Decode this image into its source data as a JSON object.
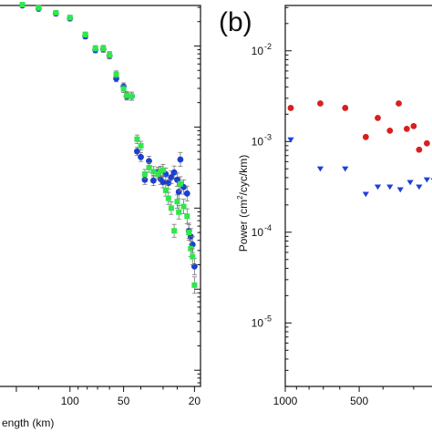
{
  "chart_data": [
    {
      "type": "scatter",
      "panel_label": "",
      "xscale": "log-reversed",
      "xlim": [
        250,
        18.5
      ],
      "ylim_log10": [
        -6.2,
        -1.5
      ],
      "x_ticks": [
        100,
        50,
        20
      ],
      "x_tick_labels": [
        "100",
        "50",
        "20"
      ],
      "xlabel": "ength (km)",
      "ylabel": "",
      "error_bars": true,
      "series": [
        {
          "color": "#1a3fd0",
          "marker": "circle",
          "x": [
            185,
            150,
            120,
            100,
            82,
            72,
            65,
            60,
            55,
            50,
            48,
            45,
            42,
            40,
            38,
            36,
            34,
            32,
            31,
            30,
            29,
            28,
            27,
            26,
            25,
            24.5,
            24,
            23,
            22,
            21.5,
            21,
            20.5,
            20
          ],
          "y": [
            -1.5,
            -1.54,
            -1.6,
            -1.66,
            -1.88,
            -2.05,
            -2.04,
            -2.12,
            -2.4,
            -2.5,
            -2.62,
            -2.62,
            -3.3,
            -3.37,
            -3.65,
            -3.42,
            -3.66,
            -3.56,
            -3.64,
            -3.68,
            -3.58,
            -3.69,
            -3.62,
            -3.56,
            -3.65,
            -3.8,
            -3.4,
            -3.74,
            -3.82,
            -4.28,
            -4.35,
            -4.45,
            -4.72
          ]
        },
        {
          "color": "#2ee84a",
          "marker": "square",
          "x": [
            185,
            150,
            120,
            100,
            82,
            72,
            65,
            60,
            55,
            50,
            48,
            45,
            42,
            40,
            38,
            36,
            34,
            32,
            31,
            30,
            29,
            28,
            27,
            26,
            25,
            24.5,
            24,
            23,
            22,
            21.5,
            21,
            20.5,
            20
          ],
          "y": [
            -1.49,
            -1.53,
            -1.59,
            -1.65,
            -1.86,
            -2.03,
            -2.03,
            -2.11,
            -2.35,
            -2.53,
            -2.61,
            -2.62,
            -3.15,
            -3.23,
            -3.58,
            -3.5,
            -3.55,
            -3.58,
            -3.55,
            -3.53,
            -3.78,
            -3.88,
            -4.0,
            -4.28,
            -3.92,
            -4.05,
            -3.7,
            -3.98,
            -4.1,
            -4.3,
            -4.5,
            -4.6,
            -4.95
          ]
        }
      ]
    },
    {
      "type": "scatter",
      "panel_label": "(b)",
      "xscale": "log-reversed",
      "xlim": [
        1000,
        240
      ],
      "ylim_log10": [
        -5.7,
        -1.5
      ],
      "x_ticks": [
        1000,
        500
      ],
      "x_tick_labels": [
        "1000",
        "500"
      ],
      "y_ticks_log10": [
        -2,
        -3,
        -4,
        -5
      ],
      "y_tick_labels": [
        {
          "base": "10",
          "exp": "-2"
        },
        {
          "base": "10",
          "exp": "-3"
        },
        {
          "base": "10",
          "exp": "-4"
        },
        {
          "base": "10",
          "exp": "-5"
        }
      ],
      "xlabel": "",
      "ylabel": {
        "pre": "Power (cm",
        "sup": "2",
        "post": "/cyc/km)"
      },
      "series": [
        {
          "color": "#d81f1f",
          "marker": "circle",
          "x": [
            950,
            720,
            570,
            470,
            420,
            375,
            345,
            320,
            300,
            285,
            265
          ],
          "y": [
            -2.63,
            -2.58,
            -2.63,
            -2.95,
            -2.74,
            -2.88,
            -2.58,
            -2.86,
            -2.83,
            -3.09,
            -3.02
          ]
        },
        {
          "color": "#1f3fd8",
          "marker": "triangle-down",
          "x": [
            950,
            720,
            570,
            470,
            420,
            375,
            340,
            310,
            285,
            265,
            248
          ],
          "y": [
            -2.98,
            -3.3,
            -3.3,
            -3.58,
            -3.5,
            -3.5,
            -3.53,
            -3.45,
            -3.5,
            -3.42,
            -3.43
          ]
        }
      ]
    }
  ]
}
